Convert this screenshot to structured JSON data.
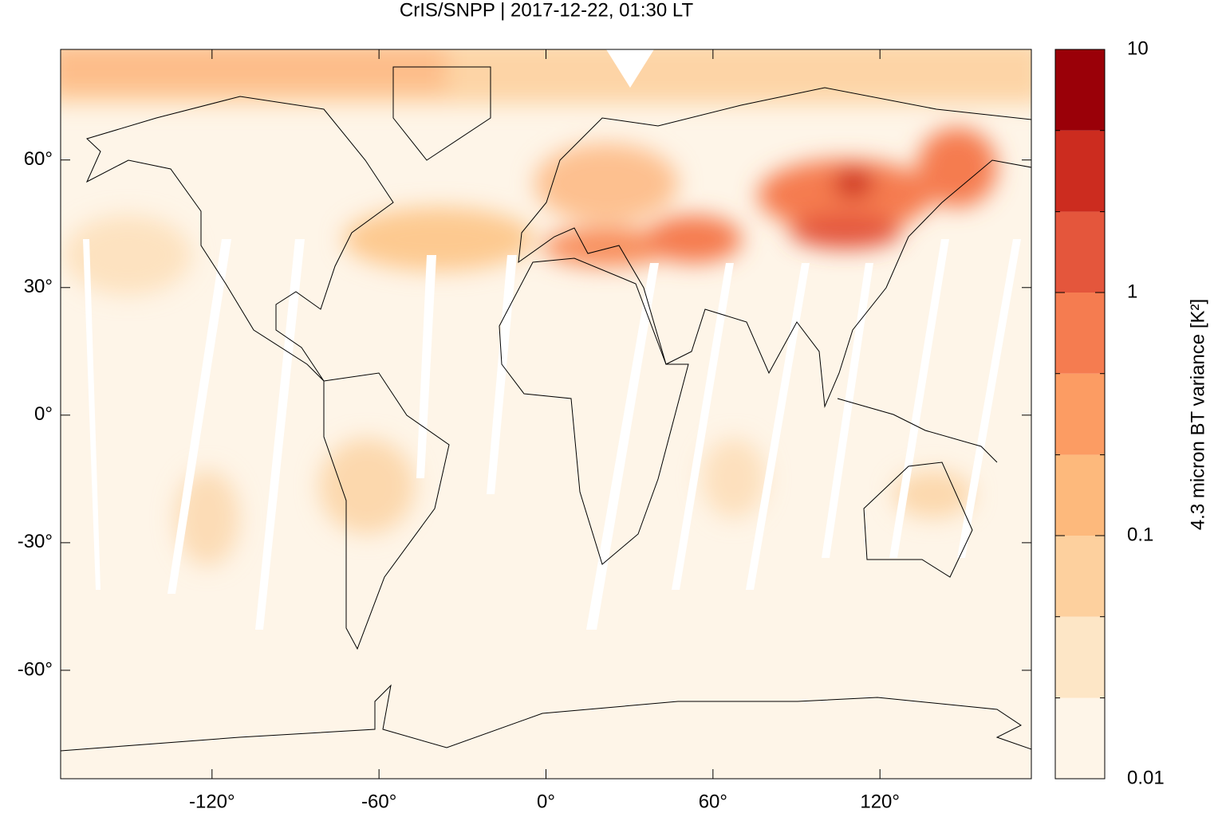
{
  "chart_data": {
    "type": "map",
    "title": "CrIS/SNPP | 2017-12-22, 01:30 LT",
    "xlim": [
      -174.4,
      174.4
    ],
    "ylim": [
      -85.5,
      86
    ],
    "xticks": [
      {
        "value": -120,
        "label": "-120°"
      },
      {
        "value": -60,
        "label": "-60°"
      },
      {
        "value": 0,
        "label": "0°"
      },
      {
        "value": 60,
        "label": "60°"
      },
      {
        "value": 120,
        "label": "120°"
      }
    ],
    "yticks": [
      {
        "value": -60,
        "label": "-60°"
      },
      {
        "value": -30,
        "label": "-30°"
      },
      {
        "value": 0,
        "label": "0°"
      },
      {
        "value": 30,
        "label": "30°"
      },
      {
        "value": 60,
        "label": "60°"
      }
    ],
    "colorbar": {
      "label": "4.3 micron BT variance [K²]",
      "scale": "log",
      "lim": [
        0.01,
        10
      ],
      "ticks": [
        0.01,
        0.1,
        1,
        10
      ],
      "levels": [
        0.01,
        0.0215,
        0.0464,
        0.1,
        0.215,
        0.464,
        1,
        2.15,
        4.64,
        10
      ],
      "colors": [
        "#fef5e8",
        "#fde6c6",
        "#fdd09e",
        "#fdb97c",
        "#fc9c63",
        "#f57c50",
        "#e4563c",
        "#cc2c1f",
        "#9a0008"
      ]
    }
  }
}
